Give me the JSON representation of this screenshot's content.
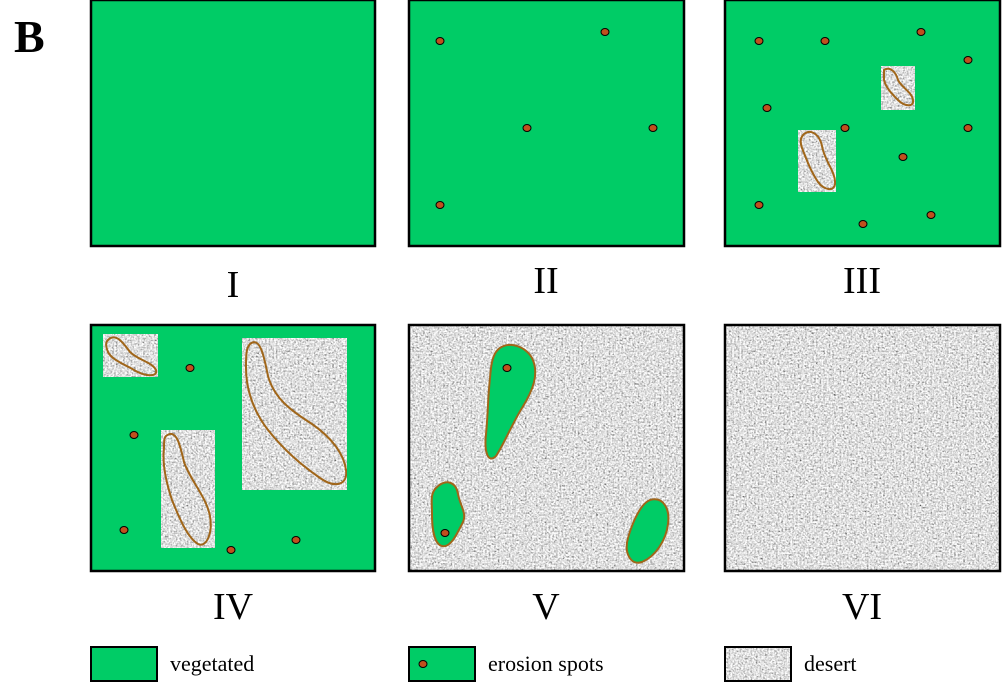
{
  "figure_letter": "B",
  "panels": [
    {
      "label": "I",
      "state": "vegetated"
    },
    {
      "label": "II",
      "state": "vegetated with erosion spots"
    },
    {
      "label": "III",
      "state": "vegetated with erosion spots and desert patches"
    },
    {
      "label": "IV",
      "state": "vegetated with larger desert patches"
    },
    {
      "label": "V",
      "state": "desert with vegetated islands"
    },
    {
      "label": "VI",
      "state": "desert"
    }
  ],
  "legend": {
    "vegetated": "vegetated",
    "erosion": "erosion spots",
    "desert": "desert"
  },
  "colors": {
    "vegetated": "#00cc66",
    "erosion_fill": "#c0501e",
    "patch_outline": "#a0661a",
    "desert_base": "#b8b8b8",
    "border": "#000000"
  }
}
